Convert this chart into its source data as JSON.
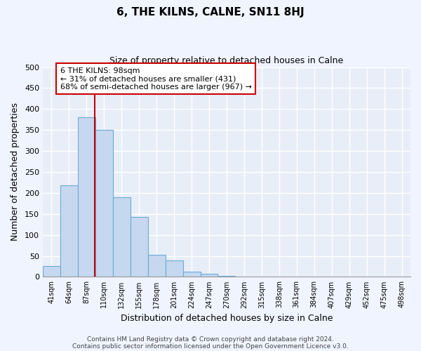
{
  "title": "6, THE KILNS, CALNE, SN11 8HJ",
  "subtitle": "Size of property relative to detached houses in Calne",
  "xlabel": "Distribution of detached houses by size in Calne",
  "ylabel": "Number of detached properties",
  "bar_labels": [
    "41sqm",
    "64sqm",
    "87sqm",
    "110sqm",
    "132sqm",
    "155sqm",
    "178sqm",
    "201sqm",
    "224sqm",
    "247sqm",
    "270sqm",
    "292sqm",
    "315sqm",
    "338sqm",
    "361sqm",
    "384sqm",
    "407sqm",
    "429sqm",
    "452sqm",
    "475sqm",
    "498sqm"
  ],
  "bar_heights": [
    25,
    218,
    380,
    350,
    190,
    143,
    53,
    40,
    13,
    7,
    2,
    0,
    0,
    1,
    0,
    0,
    0,
    0,
    0,
    0,
    0
  ],
  "bar_color": "#c5d8ef",
  "bar_edge_color": "#6aaad4",
  "vline_color": "#cc0000",
  "annotation_text": "6 THE KILNS: 98sqm\n← 31% of detached houses are smaller (431)\n68% of semi-detached houses are larger (967) →",
  "annotation_box_color": "#ffffff",
  "annotation_box_edge": "#cc0000",
  "ylim": [
    0,
    500
  ],
  "yticks": [
    0,
    50,
    100,
    150,
    200,
    250,
    300,
    350,
    400,
    450,
    500
  ],
  "footer1": "Contains HM Land Registry data © Crown copyright and database right 2024.",
  "footer2": "Contains public sector information licensed under the Open Government Licence v3.0.",
  "bg_color": "#f0f4ff",
  "plot_bg_color": "#e8eef8",
  "grid_color": "#ffffff"
}
